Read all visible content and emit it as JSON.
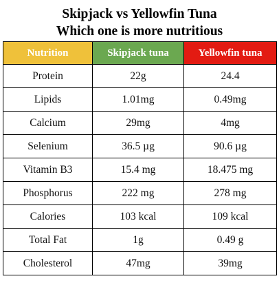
{
  "title": {
    "line1": "Skipjack vs Yellowfin Tuna",
    "line2": "Which one is more nutritious"
  },
  "table": {
    "headers": {
      "nutrition": "Nutrition",
      "skipjack": "Skipjack tuna",
      "yellowfin": "Yellowfin tuna"
    },
    "header_colors": {
      "nutrition": "#efc13a",
      "skipjack": "#6ba850",
      "yellowfin": "#e31b12"
    },
    "rows": [
      {
        "nutrient": "Protein",
        "skipjack": "22g",
        "yellowfin": "24.4"
      },
      {
        "nutrient": "Lipids",
        "skipjack": "1.01mg",
        "yellowfin": "0.49mg"
      },
      {
        "nutrient": "Calcium",
        "skipjack": "29mg",
        "yellowfin": "4mg"
      },
      {
        "nutrient": "Selenium",
        "skipjack": "36.5 µg",
        "yellowfin": "90.6 µg"
      },
      {
        "nutrient": "Vitamin B3",
        "skipjack": "15.4 mg",
        "yellowfin": "18.475 mg"
      },
      {
        "nutrient": "Phosphorus",
        "skipjack": "222 mg",
        "yellowfin": "278 mg"
      },
      {
        "nutrient": "Calories",
        "skipjack": "103 kcal",
        "yellowfin": "109 kcal"
      },
      {
        "nutrient": "Total Fat",
        "skipjack": "1g",
        "yellowfin": "0.49 g"
      },
      {
        "nutrient": "Cholesterol",
        "skipjack": "47mg",
        "yellowfin": "39mg"
      }
    ]
  }
}
